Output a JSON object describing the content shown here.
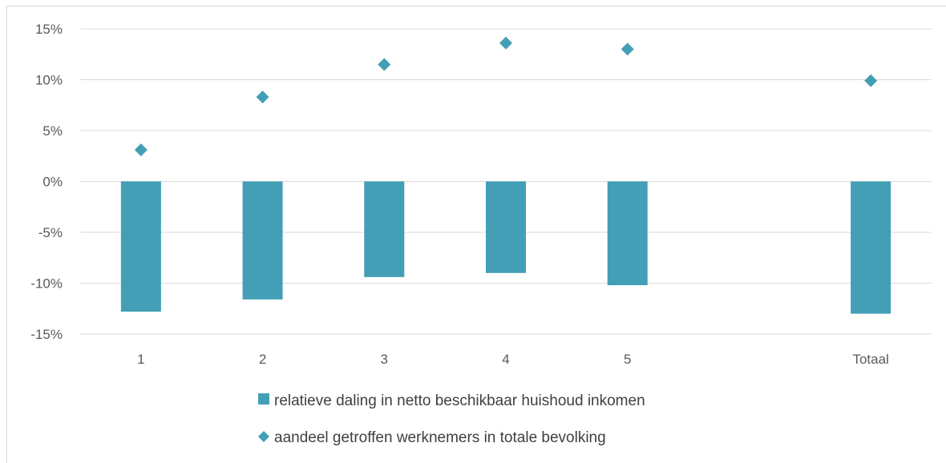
{
  "colors": {
    "series": "#429FB6",
    "grid": "#d9d9d9",
    "text": "#595959"
  },
  "chart_data": {
    "type": "bar",
    "categories": [
      "1",
      "2",
      "3",
      "4",
      "5",
      "",
      "Totaal"
    ],
    "series": [
      {
        "name": "relatieve daling in netto beschikbaar huishoud inkomen",
        "type": "bar",
        "marker": "square-icon",
        "values": [
          -12.8,
          -11.6,
          -9.4,
          -9.0,
          -10.2,
          null,
          -13.0
        ]
      },
      {
        "name": "aandeel getroffen werknemers in totale bevolking",
        "type": "scatter",
        "marker": "diamond-icon",
        "values": [
          3.1,
          8.3,
          11.5,
          13.6,
          13.0,
          null,
          9.9
        ]
      }
    ],
    "ylim": [
      -15,
      15
    ],
    "yticks": [
      "15%",
      "10%",
      "5%",
      "0%",
      "-5%",
      "-10%",
      "-15%"
    ],
    "title": "",
    "xlabel": "",
    "ylabel": "",
    "grid": true,
    "legend_position": "bottom"
  }
}
